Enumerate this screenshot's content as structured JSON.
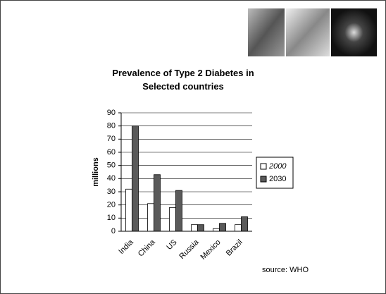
{
  "chart_data": {
    "type": "bar",
    "title": "Prevalence of Type 2 Diabetes in Selected countries",
    "y_label": "millions",
    "categories": [
      "India",
      "China",
      "US",
      "Russia",
      "Mexico",
      "Brazil"
    ],
    "series": [
      {
        "name": "2000",
        "color": "#ffffff",
        "values": [
          32,
          21,
          18,
          5,
          2,
          5
        ]
      },
      {
        "name": "2030",
        "color": "#5a5a5a",
        "values": [
          80,
          43,
          31,
          5,
          6,
          11
        ]
      }
    ],
    "ylim": [
      0,
      90
    ],
    "yticks": [
      0,
      10,
      20,
      30,
      40,
      50,
      60,
      70,
      80,
      90
    ],
    "grid": true,
    "legend": "right",
    "source": "source: WHO"
  }
}
